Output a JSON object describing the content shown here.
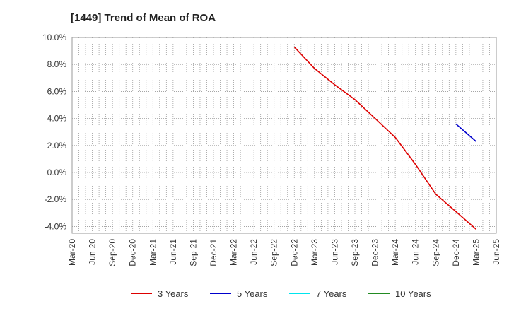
{
  "chart_data": {
    "type": "line",
    "title": "[1449]  Trend of Mean of ROA",
    "xlabel": "",
    "ylabel": "",
    "categories": [
      "Mar-20",
      "Jun-20",
      "Sep-20",
      "Dec-20",
      "Mar-21",
      "Jun-21",
      "Sep-21",
      "Dec-21",
      "Mar-22",
      "Jun-22",
      "Sep-22",
      "Dec-22",
      "Mar-23",
      "Jun-23",
      "Sep-23",
      "Dec-23",
      "Mar-24",
      "Jun-24",
      "Sep-24",
      "Dec-24",
      "Mar-25",
      "Jun-25"
    ],
    "ylim": [
      -4.5,
      10.0
    ],
    "yticks": [
      10.0,
      8.0,
      6.0,
      4.0,
      2.0,
      0.0,
      -2.0,
      -4.0
    ],
    "ytick_labels": [
      "10.0%",
      "8.0%",
      "6.0%",
      "4.0%",
      "2.0%",
      "0.0%",
      "-2.0%",
      "-4.0%"
    ],
    "grid": true,
    "legend_position": "bottom",
    "series": [
      {
        "name": "3 Years",
        "color": "#dd0000",
        "values": [
          null,
          null,
          null,
          null,
          null,
          null,
          null,
          null,
          null,
          null,
          null,
          9.3,
          7.7,
          6.5,
          5.4,
          4.0,
          2.6,
          0.6,
          -1.6,
          -2.9,
          -4.2,
          null
        ]
      },
      {
        "name": "5 Years",
        "color": "#0000cc",
        "values": [
          null,
          null,
          null,
          null,
          null,
          null,
          null,
          null,
          null,
          null,
          null,
          null,
          null,
          null,
          null,
          null,
          null,
          null,
          null,
          3.6,
          2.3,
          null
        ]
      },
      {
        "name": "7 Years",
        "color": "#00e5ee",
        "values": [
          null,
          null,
          null,
          null,
          null,
          null,
          null,
          null,
          null,
          null,
          null,
          null,
          null,
          null,
          null,
          null,
          null,
          null,
          null,
          null,
          null,
          null
        ]
      },
      {
        "name": "10 Years",
        "color": "#228b22",
        "values": [
          null,
          null,
          null,
          null,
          null,
          null,
          null,
          null,
          null,
          null,
          null,
          null,
          null,
          null,
          null,
          null,
          null,
          null,
          null,
          null,
          null,
          null
        ]
      }
    ]
  }
}
